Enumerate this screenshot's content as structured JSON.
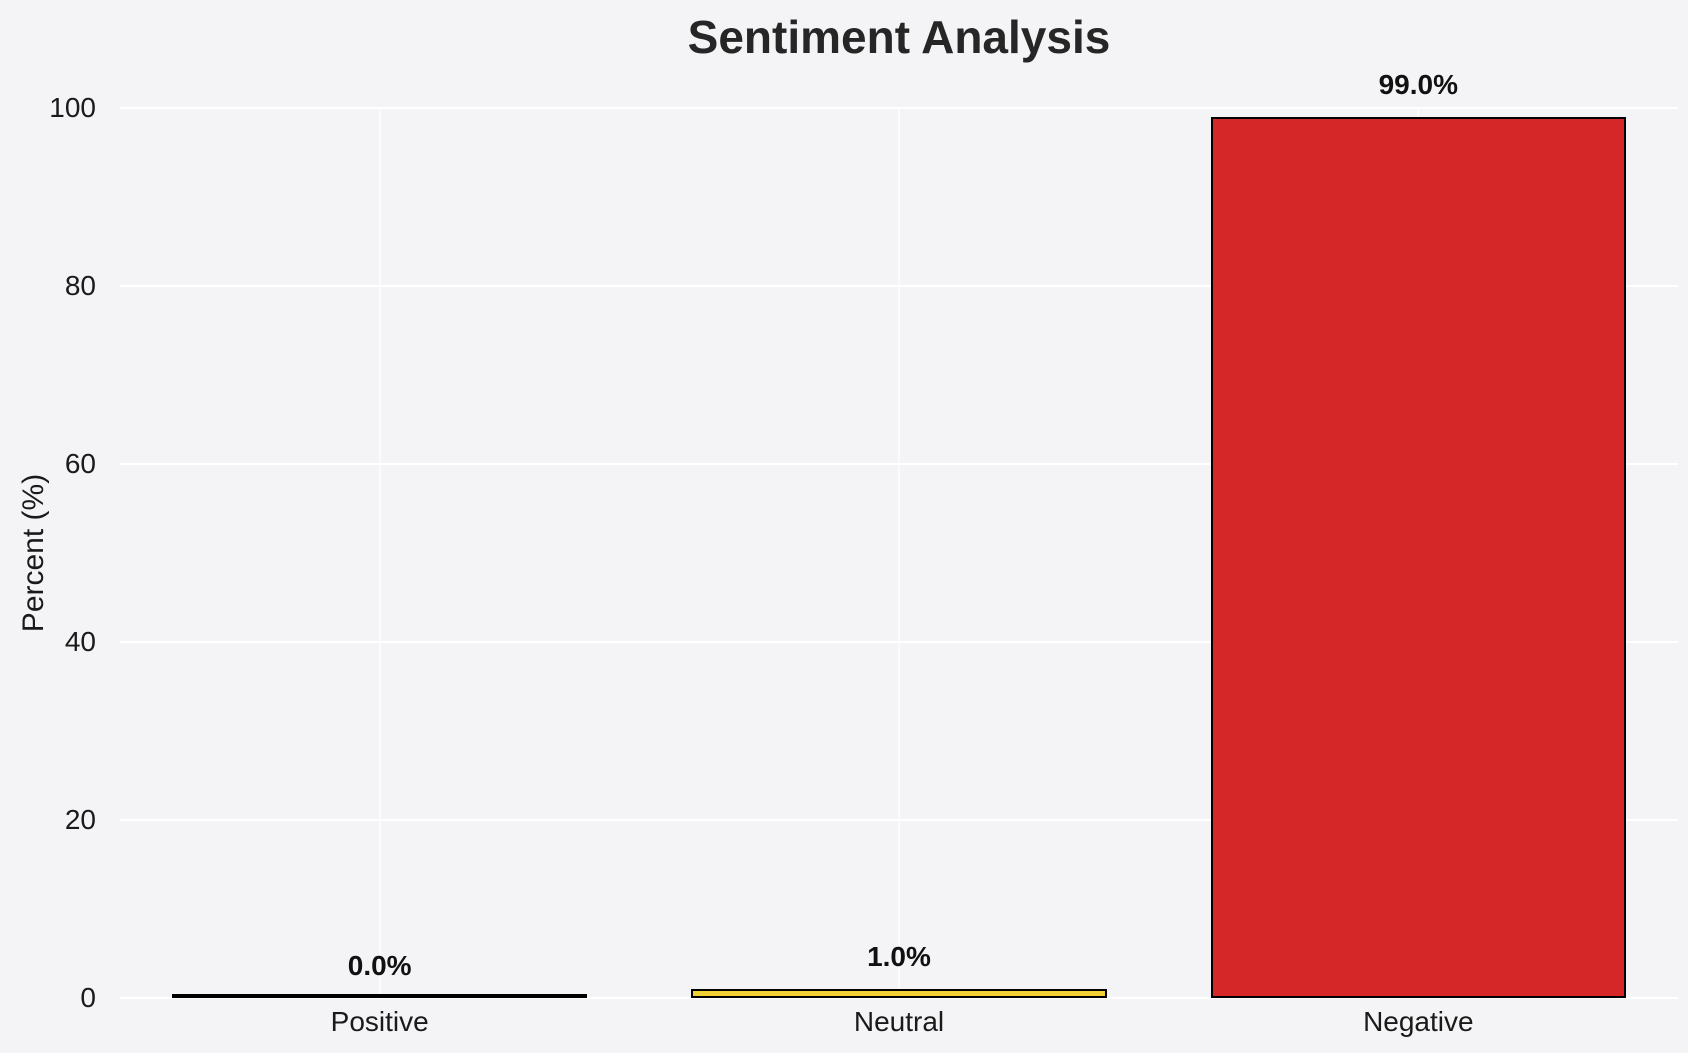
{
  "chart": {
    "title": "Sentiment Analysis",
    "ylabel": "Percent (%)"
  },
  "chart_data": {
    "type": "bar",
    "title": "Sentiment Analysis",
    "xlabel": "",
    "ylabel": "Percent (%)",
    "categories": [
      "Positive",
      "Neutral",
      "Negative"
    ],
    "values": [
      0.0,
      1.0,
      99.0
    ],
    "value_labels": [
      "0.0%",
      "1.0%",
      "99.0%"
    ],
    "bar_colors": [
      "#f4f4f6",
      "#f2d232",
      "#d62728"
    ],
    "bar_edge_color": "#000000",
    "ylim": [
      0,
      100
    ],
    "yticks": [
      0,
      20,
      40,
      60,
      80,
      100
    ],
    "grid": true,
    "grid_color": "#ffffff",
    "background_color": "#f4f4f6",
    "legend_position": "none"
  }
}
